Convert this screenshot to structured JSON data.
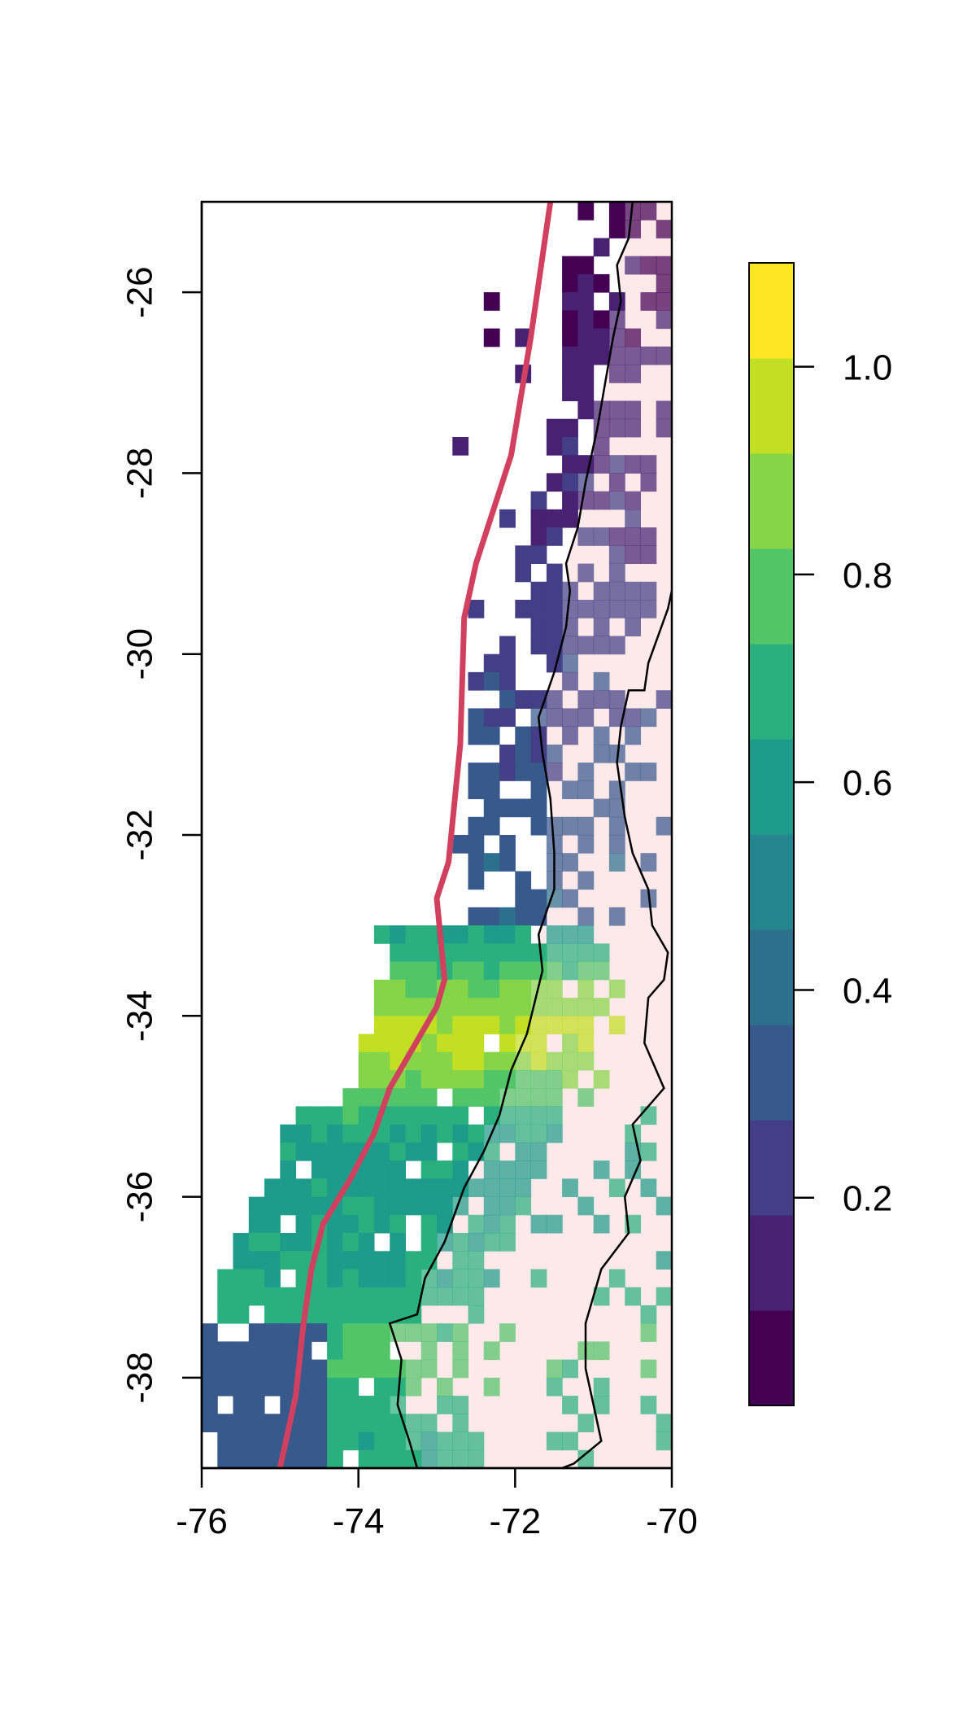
{
  "map": {
    "x_ticks": [
      {
        "value": -76,
        "label": "-76"
      },
      {
        "value": -74,
        "label": "-74"
      },
      {
        "value": -72,
        "label": "-72"
      },
      {
        "value": -70,
        "label": "-70"
      }
    ],
    "y_ticks": [
      {
        "value": -26,
        "label": "-26"
      },
      {
        "value": -28,
        "label": "-28"
      },
      {
        "value": -30,
        "label": "-30"
      },
      {
        "value": -32,
        "label": "-32"
      },
      {
        "value": -34,
        "label": "-34"
      },
      {
        "value": -36,
        "label": "-36"
      },
      {
        "value": -38,
        "label": "-38"
      }
    ],
    "xlim": [
      -76,
      -70
    ],
    "ylim": [
      -39,
      -25
    ],
    "land_color": "#fde8ea",
    "trench_color": "#d1415f",
    "coast_color": "#000000",
    "trench_line": [
      [
        -71.55,
        -25
      ],
      [
        -71.8,
        -26.5
      ],
      [
        -72.05,
        -27.8
      ],
      [
        -72.5,
        -29
      ],
      [
        -72.65,
        -29.6
      ],
      [
        -72.7,
        -31
      ],
      [
        -72.85,
        -32.3
      ],
      [
        -73.0,
        -32.7
      ],
      [
        -72.9,
        -33.6
      ],
      [
        -73.0,
        -33.9
      ],
      [
        -73.6,
        -34.8
      ],
      [
        -73.8,
        -35.3
      ],
      [
        -74.1,
        -35.8
      ],
      [
        -74.45,
        -36.3
      ],
      [
        -74.6,
        -36.8
      ],
      [
        -74.7,
        -37.4
      ],
      [
        -74.8,
        -38.2
      ],
      [
        -75.0,
        -39
      ]
    ],
    "coastline": [
      [
        -70.5,
        -25
      ],
      [
        -70.55,
        -25.4
      ],
      [
        -70.7,
        -25.7
      ],
      [
        -70.65,
        -26.1
      ],
      [
        -70.75,
        -26.5
      ],
      [
        -70.85,
        -27
      ],
      [
        -70.95,
        -27.5
      ],
      [
        -71.1,
        -28.1
      ],
      [
        -71.2,
        -28.6
      ],
      [
        -71.35,
        -29
      ],
      [
        -71.3,
        -29.3
      ],
      [
        -71.35,
        -29.7
      ],
      [
        -71.5,
        -30.2
      ],
      [
        -71.7,
        -30.7
      ],
      [
        -71.65,
        -31.1
      ],
      [
        -71.55,
        -31.6
      ],
      [
        -71.5,
        -32.2
      ],
      [
        -71.5,
        -32.6
      ],
      [
        -71.7,
        -33.1
      ],
      [
        -71.65,
        -33.5
      ],
      [
        -71.85,
        -34.2
      ],
      [
        -72.05,
        -34.6
      ],
      [
        -72.2,
        -35.1
      ],
      [
        -72.4,
        -35.5
      ],
      [
        -72.65,
        -35.9
      ],
      [
        -72.9,
        -36.5
      ],
      [
        -73.15,
        -36.9
      ],
      [
        -73.25,
        -37.3
      ],
      [
        -73.6,
        -37.4
      ],
      [
        -73.45,
        -37.8
      ],
      [
        -73.5,
        -38.3
      ],
      [
        -73.35,
        -38.7
      ],
      [
        -73.25,
        -39
      ]
    ],
    "border": [
      [
        -70.0,
        -29.3
      ],
      [
        -70.05,
        -29.5
      ],
      [
        -70.3,
        -30.1
      ],
      [
        -70.35,
        -30.4
      ],
      [
        -70.55,
        -30.4
      ],
      [
        -70.65,
        -30.8
      ],
      [
        -70.7,
        -31.2
      ],
      [
        -70.6,
        -31.8
      ],
      [
        -70.5,
        -32.2
      ],
      [
        -70.3,
        -32.6
      ],
      [
        -70.25,
        -33.0
      ],
      [
        -70.05,
        -33.3
      ],
      [
        -70.1,
        -33.6
      ],
      [
        -70.3,
        -33.8
      ],
      [
        -70.35,
        -34.3
      ],
      [
        -70.1,
        -34.8
      ],
      [
        -70.5,
        -35.2
      ],
      [
        -70.4,
        -35.6
      ],
      [
        -70.6,
        -36.0
      ],
      [
        -70.55,
        -36.4
      ],
      [
        -70.9,
        -36.8
      ],
      [
        -71.1,
        -37.4
      ],
      [
        -71.1,
        -37.9
      ],
      [
        -71.0,
        -38.3
      ],
      [
        -70.9,
        -38.7
      ],
      [
        -71.25,
        -38.95
      ],
      [
        -71.4,
        -39
      ]
    ]
  },
  "colorbar": {
    "ticks": [
      {
        "value": 0.2,
        "label": "0.2"
      },
      {
        "value": 0.4,
        "label": "0.4"
      },
      {
        "value": 0.6,
        "label": "0.6"
      },
      {
        "value": 0.8,
        "label": "0.8"
      },
      {
        "value": 1.0,
        "label": "1.0"
      }
    ],
    "range": [
      0.0,
      1.1
    ],
    "colors": [
      "#440154",
      "#482173",
      "#433e85",
      "#38598c",
      "#2d708e",
      "#25858e",
      "#1e9b8a",
      "#2ab07f",
      "#52c569",
      "#86d549",
      "#c2df23",
      "#fde725"
    ]
  }
}
